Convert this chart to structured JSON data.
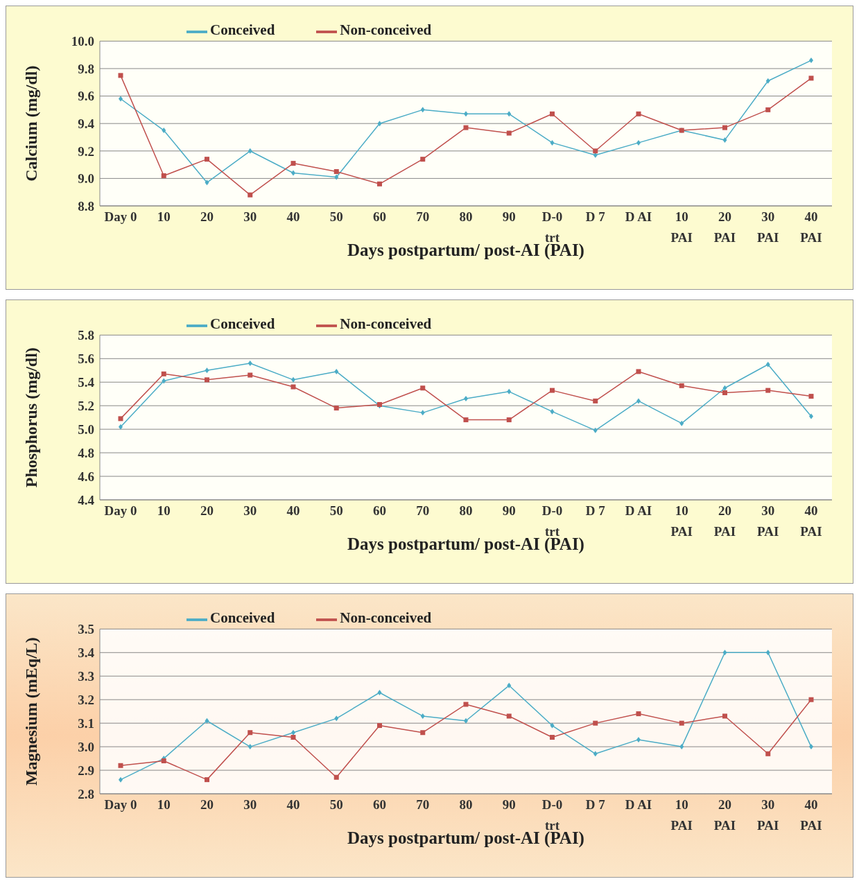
{
  "chart_data": [
    {
      "type": "line",
      "xlabel": "Days postpartum/ post-AI (PAI)",
      "ylabel": "Calcium (mg/dl)",
      "categories": [
        "Day 0",
        "10",
        "20",
        "30",
        "40",
        "50",
        "60",
        "70",
        "80",
        "90",
        "D-0\ntrt",
        "D 7",
        "D AI",
        "10\nPAI",
        "20\nPAI",
        "30\nPAI",
        "40\nPAI"
      ],
      "series": [
        {
          "name": "Conceived",
          "color": "#4bacc6",
          "marker": "diamond",
          "values": [
            9.58,
            9.35,
            8.97,
            9.2,
            9.04,
            9.01,
            9.4,
            9.5,
            9.47,
            9.47,
            9.26,
            9.17,
            9.26,
            9.35,
            9.28,
            9.71,
            9.86
          ]
        },
        {
          "name": "Non-conceived",
          "color": "#c0504d",
          "marker": "square",
          "values": [
            9.75,
            9.02,
            9.14,
            8.88,
            9.11,
            9.05,
            8.96,
            9.14,
            9.37,
            9.33,
            9.47,
            9.2,
            9.47,
            9.35,
            9.37,
            9.5,
            9.73
          ]
        }
      ],
      "ylim": [
        8.8,
        10
      ],
      "yticks": [
        8.8,
        {
          "value": 9,
          "label": "9.0"
        },
        9.2,
        9.4,
        9.6,
        9.8,
        {
          "value": 10,
          "label": "10.0"
        }
      ],
      "grid": "y",
      "legend": "top",
      "line_style": "solid"
    },
    {
      "type": "line",
      "xlabel": "Days postpartum/ post-AI (PAI)",
      "ylabel": "Phosphorus (mg/dl)",
      "categories": [
        "Day 0",
        "10",
        "20",
        "30",
        "40",
        "50",
        "60",
        "70",
        "80",
        "90",
        "D-0\ntrt",
        "D 7",
        "D AI",
        "10\nPAI",
        "20\nPAI",
        "30\nPAI",
        "40\nPAI"
      ],
      "series": [
        {
          "name": "Conceived",
          "color": "#4bacc6",
          "marker": "diamond",
          "values": [
            5.02,
            5.41,
            5.5,
            5.56,
            5.42,
            5.49,
            5.2,
            5.14,
            5.26,
            5.32,
            5.15,
            4.99,
            5.24,
            5.05,
            5.35,
            5.55,
            5.11
          ]
        },
        {
          "name": "Non-conceived",
          "color": "#c0504d",
          "marker": "square",
          "values": [
            5.09,
            5.47,
            5.42,
            5.46,
            5.36,
            5.18,
            5.21,
            5.35,
            5.08,
            5.08,
            5.33,
            5.24,
            5.49,
            5.37,
            5.31,
            5.33,
            5.28
          ]
        }
      ],
      "ylim": [
        4.4,
        5.8
      ],
      "yticks": [
        4.4,
        4.6,
        4.8,
        {
          "value": 5,
          "label": "5.0"
        },
        5.2,
        5.4,
        5.6,
        5.8
      ],
      "grid": "y",
      "legend": "top",
      "line_style": "solid"
    },
    {
      "type": "line",
      "xlabel": "Days postpartum/ post-AI (PAI)",
      "ylabel": "Magnesium (mEq/L)",
      "categories": [
        "Day 0",
        "10",
        "20",
        "30",
        "40",
        "50",
        "60",
        "70",
        "80",
        "90",
        "D-0\ntrt",
        "D 7",
        "D AI",
        "10\nPAI",
        "20\nPAI",
        "30\nPAI",
        "40\nPAI"
      ],
      "series": [
        {
          "name": "Conceived",
          "color": "#4bacc6",
          "marker": "diamond",
          "values": [
            2.86,
            2.95,
            3.11,
            3.0,
            3.06,
            3.12,
            3.23,
            3.13,
            3.11,
            3.26,
            3.09,
            2.97,
            3.03,
            3.0,
            3.4,
            3.4,
            3.0
          ]
        },
        {
          "name": "Non-conceived",
          "color": "#c0504d",
          "marker": "square",
          "values": [
            2.92,
            2.94,
            2.86,
            3.06,
            3.04,
            2.87,
            3.09,
            3.06,
            3.18,
            3.13,
            3.04,
            3.1,
            3.14,
            3.1,
            3.13,
            2.97,
            3.2
          ]
        }
      ],
      "ylim": [
        2.8,
        3.5
      ],
      "yticks": [
        2.8,
        2.9,
        {
          "value": 3,
          "label": "3.0"
        },
        3.1,
        3.2,
        3.3,
        3.4,
        3.5
      ],
      "grid": "y",
      "legend": "top",
      "line_style": "solid"
    }
  ]
}
